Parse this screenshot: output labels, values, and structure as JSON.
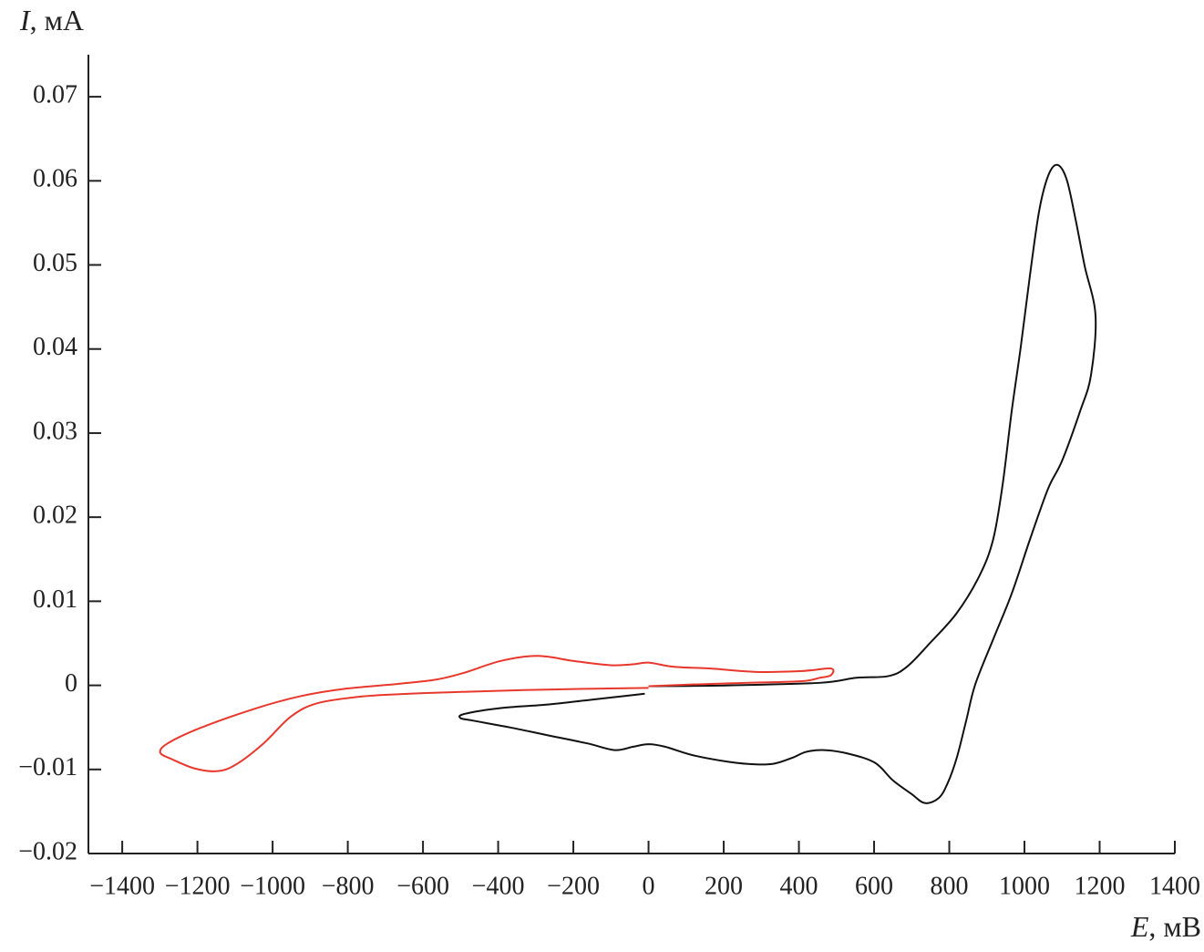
{
  "chart_data": {
    "type": "line",
    "y_label_var": "I",
    "y_label_unit": ", мА",
    "x_label_var": "E",
    "x_label_unit": ", мВ",
    "xlim": [
      -1490,
      1400
    ],
    "ylim": [
      -0.02,
      0.075
    ],
    "xticks": [
      {
        "value": -1400,
        "label": "−1400"
      },
      {
        "value": -1200,
        "label": "−1200"
      },
      {
        "value": -1000,
        "label": "−1000"
      },
      {
        "value": -800,
        "label": "−800"
      },
      {
        "value": -600,
        "label": "−600"
      },
      {
        "value": -400,
        "label": "−400"
      },
      {
        "value": -200,
        "label": "−200"
      },
      0,
      200,
      400,
      600,
      800,
      1000,
      1200,
      1400
    ],
    "yticks": [
      {
        "value": -0.02,
        "label": "−0.02"
      },
      {
        "value": -0.01,
        "label": "−0.01"
      },
      0,
      0.01,
      0.02,
      0.03,
      0.04,
      0.05,
      0.06,
      0.07
    ],
    "series": [
      {
        "color": "#111111",
        "x": [
          0,
          214,
          456,
          553,
          638,
          687,
          748,
          820,
          881,
          917,
          942,
          966,
          990,
          1015,
          1039,
          1063,
          1087,
          1112,
          1136,
          1160,
          1189,
          1177,
          1148,
          1100,
          1063,
          1015,
          966,
          917,
          869,
          845,
          820,
          796,
          772,
          735,
          699,
          650,
          602,
          529,
          468,
          420,
          383,
          335,
          286,
          214,
          117,
          44,
          0,
          -41,
          -90,
          -163,
          -272,
          -369,
          -466,
          -500,
          -490,
          -393,
          -272,
          -150,
          -10
        ],
        "values": [
          -0.0001,
          0,
          0.0003,
          0.0009,
          0.0011,
          0.0022,
          0.005,
          0.0086,
          0.0131,
          0.0174,
          0.0239,
          0.0326,
          0.0402,
          0.0489,
          0.0564,
          0.0606,
          0.0619,
          0.0602,
          0.0554,
          0.0499,
          0.044,
          0.0369,
          0.0326,
          0.0267,
          0.0234,
          0.0174,
          0.0109,
          0.0055,
          0.0001,
          -0.0042,
          -0.0086,
          -0.0116,
          -0.0134,
          -0.014,
          -0.0129,
          -0.0113,
          -0.0092,
          -0.0081,
          -0.0077,
          -0.0079,
          -0.0086,
          -0.0093,
          -0.0094,
          -0.0091,
          -0.0083,
          -0.0073,
          -0.007,
          -0.0073,
          -0.0077,
          -0.0069,
          -0.0059,
          -0.005,
          -0.0042,
          -0.0039,
          -0.0034,
          -0.0027,
          -0.0023,
          -0.0017,
          -0.001
        ]
      },
      {
        "color": "#e8382c",
        "x": [
          0,
          -272,
          -515,
          -636,
          -757,
          -879,
          -951,
          -1024,
          -1097,
          -1146,
          -1206,
          -1267,
          -1299,
          -1279,
          -1194,
          -1049,
          -927,
          -806,
          -660,
          -563,
          -490,
          -393,
          -296,
          -199,
          -102,
          -41,
          0,
          68,
          165,
          286,
          408,
          485,
          485,
          456,
          408,
          262,
          117,
          0
        ],
        "values": [
          -0.0003,
          -0.0005,
          -0.0008,
          -0.001,
          -0.0013,
          -0.0021,
          -0.0037,
          -0.0069,
          -0.0094,
          -0.0102,
          -0.0099,
          -0.0088,
          -0.008,
          -0.0069,
          -0.0051,
          -0.0028,
          -0.0013,
          -0.0004,
          0.0002,
          0.0007,
          0.0015,
          0.0029,
          0.0035,
          0.0029,
          0.0024,
          0.0025,
          0.0027,
          0.0022,
          0.002,
          0.0016,
          0.0017,
          0.002,
          0.0012,
          0.0009,
          0.0005,
          0.0003,
          0.0001,
          -0.0001
        ]
      }
    ]
  }
}
